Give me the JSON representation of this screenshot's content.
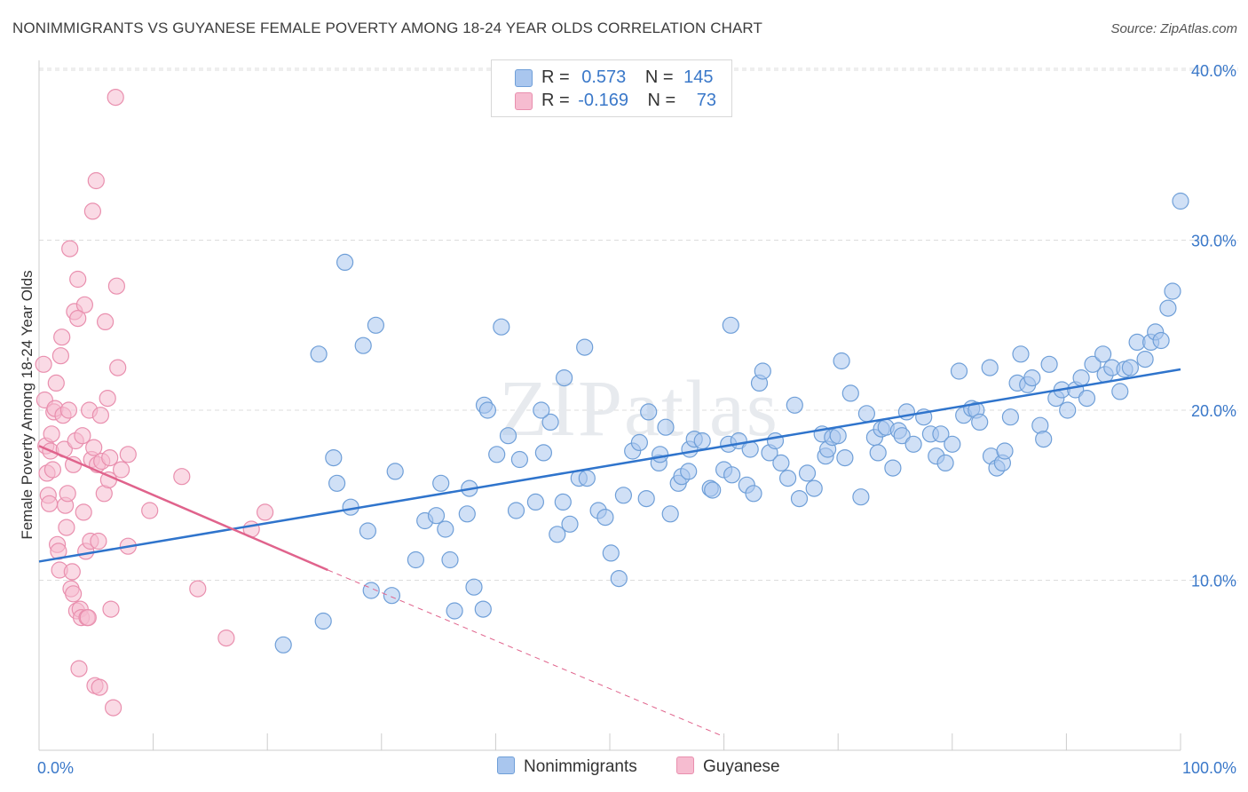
{
  "title": "NONIMMIGRANTS VS GUYANESE FEMALE POVERTY AMONG 18-24 YEAR OLDS CORRELATION CHART",
  "source": "Source: ZipAtlas.com",
  "watermark": "ZIPatlas",
  "legend": {
    "rows": [
      {
        "r_label": "R =",
        "r_value": "0.573",
        "n_label": "N =",
        "n_value": "145"
      },
      {
        "r_label": "R =",
        "r_value": "-0.169",
        "n_label": "N =",
        "n_value": "73"
      }
    ]
  },
  "bottom_legend": [
    "Nonimmigrants",
    "Guyanese"
  ],
  "colors": {
    "blue_fill": "#a9c6ee",
    "blue_stroke": "#6f9fd8",
    "blue_line": "#2f74cc",
    "pink_fill": "#f6bcd0",
    "pink_stroke": "#e98fae",
    "pink_line": "#e0638c",
    "grid": "#dddddd",
    "tick_text": "#3a78c9"
  },
  "chart_data": {
    "type": "scatter",
    "title": "NONIMMIGRANTS VS GUYANESE FEMALE POVERTY AMONG 18-24 YEAR OLDS CORRELATION CHART",
    "xlabel": "",
    "ylabel": "Female Poverty Among 18-24 Year Olds",
    "xlim": [
      0,
      100
    ],
    "ylim": [
      0,
      42
    ],
    "x_tick_labels": [
      "0.0%",
      "100.0%"
    ],
    "y_ticks": [
      10,
      20,
      30,
      40
    ],
    "y_tick_labels": [
      "10.0%",
      "20.0%",
      "30.0%",
      "40.0%"
    ],
    "grid": true,
    "legend_position": "top-center",
    "series": [
      {
        "name": "Nonimmigrants",
        "trendline": {
          "x": [
            0,
            100
          ],
          "y": [
            11.1,
            22.4
          ]
        },
        "points": [
          [
            21.4,
            6.2
          ],
          [
            24.9,
            7.6
          ],
          [
            26.8,
            28.7
          ],
          [
            24.5,
            23.3
          ],
          [
            25.8,
            17.2
          ],
          [
            26.1,
            15.7
          ],
          [
            27.3,
            14.3
          ],
          [
            28.4,
            23.8
          ],
          [
            29.5,
            25.0
          ],
          [
            28.8,
            12.9
          ],
          [
            31.2,
            16.4
          ],
          [
            29.1,
            9.4
          ],
          [
            30.9,
            9.1
          ],
          [
            33.0,
            11.2
          ],
          [
            33.8,
            13.5
          ],
          [
            34.8,
            13.8
          ],
          [
            35.2,
            15.7
          ],
          [
            35.6,
            13.0
          ],
          [
            36.0,
            11.2
          ],
          [
            37.5,
            13.9
          ],
          [
            37.7,
            15.4
          ],
          [
            38.1,
            9.6
          ],
          [
            36.4,
            8.2
          ],
          [
            38.9,
            8.3
          ],
          [
            39.0,
            20.3
          ],
          [
            39.3,
            20.0
          ],
          [
            40.1,
            17.4
          ],
          [
            40.5,
            24.9
          ],
          [
            41.1,
            18.5
          ],
          [
            42.1,
            17.1
          ],
          [
            41.8,
            14.1
          ],
          [
            43.5,
            14.6
          ],
          [
            44.2,
            17.5
          ],
          [
            44.8,
            19.3
          ],
          [
            44.0,
            20.0
          ],
          [
            45.4,
            12.7
          ],
          [
            45.9,
            14.6
          ],
          [
            46.0,
            21.9
          ],
          [
            46.5,
            13.3
          ],
          [
            47.3,
            16.0
          ],
          [
            47.8,
            23.7
          ],
          [
            48.0,
            16.0
          ],
          [
            49.0,
            14.1
          ],
          [
            49.6,
            13.7
          ],
          [
            50.1,
            11.6
          ],
          [
            50.8,
            10.1
          ],
          [
            51.2,
            15.0
          ],
          [
            52.0,
            17.6
          ],
          [
            52.6,
            18.1
          ],
          [
            53.2,
            14.8
          ],
          [
            53.4,
            19.9
          ],
          [
            54.3,
            16.9
          ],
          [
            54.4,
            17.4
          ],
          [
            54.9,
            19.0
          ],
          [
            55.3,
            13.9
          ],
          [
            56.0,
            15.7
          ],
          [
            56.3,
            16.1
          ],
          [
            56.9,
            16.4
          ],
          [
            57.0,
            17.7
          ],
          [
            57.4,
            18.3
          ],
          [
            58.1,
            18.2
          ],
          [
            58.8,
            15.4
          ],
          [
            59.0,
            15.3
          ],
          [
            60.0,
            16.5
          ],
          [
            60.4,
            18.0
          ],
          [
            60.7,
            16.2
          ],
          [
            60.6,
            25.0
          ],
          [
            61.3,
            18.2
          ],
          [
            62.0,
            15.6
          ],
          [
            62.3,
            17.7
          ],
          [
            62.6,
            15.1
          ],
          [
            63.1,
            21.6
          ],
          [
            63.4,
            22.3
          ],
          [
            64.0,
            17.5
          ],
          [
            64.5,
            18.2
          ],
          [
            65.0,
            16.9
          ],
          [
            65.6,
            16.0
          ],
          [
            66.2,
            20.3
          ],
          [
            66.6,
            14.8
          ],
          [
            67.3,
            16.3
          ],
          [
            67.9,
            15.4
          ],
          [
            68.6,
            18.6
          ],
          [
            68.9,
            17.3
          ],
          [
            69.1,
            17.7
          ],
          [
            69.5,
            18.4
          ],
          [
            70.0,
            18.5
          ],
          [
            70.3,
            22.9
          ],
          [
            70.6,
            17.2
          ],
          [
            71.1,
            21.0
          ],
          [
            72.0,
            14.9
          ],
          [
            72.5,
            19.8
          ],
          [
            73.2,
            18.4
          ],
          [
            73.5,
            17.5
          ],
          [
            73.8,
            18.9
          ],
          [
            74.2,
            19.0
          ],
          [
            74.8,
            16.6
          ],
          [
            75.3,
            18.8
          ],
          [
            75.6,
            18.5
          ],
          [
            76.0,
            19.9
          ],
          [
            76.6,
            18.0
          ],
          [
            77.5,
            19.6
          ],
          [
            78.1,
            18.6
          ],
          [
            78.6,
            17.3
          ],
          [
            79.0,
            18.6
          ],
          [
            79.4,
            16.9
          ],
          [
            80.0,
            18.0
          ],
          [
            80.6,
            22.3
          ],
          [
            81.0,
            19.7
          ],
          [
            81.7,
            20.1
          ],
          [
            82.1,
            20.0
          ],
          [
            82.4,
            19.3
          ],
          [
            83.3,
            22.5
          ],
          [
            83.4,
            17.3
          ],
          [
            83.9,
            16.6
          ],
          [
            84.4,
            16.9
          ],
          [
            84.6,
            17.6
          ],
          [
            85.1,
            19.6
          ],
          [
            85.7,
            21.6
          ],
          [
            86.0,
            23.3
          ],
          [
            86.6,
            21.5
          ],
          [
            87.0,
            21.9
          ],
          [
            87.7,
            19.1
          ],
          [
            88.0,
            18.3
          ],
          [
            88.5,
            22.7
          ],
          [
            89.1,
            20.7
          ],
          [
            89.6,
            21.2
          ],
          [
            90.1,
            20.0
          ],
          [
            90.8,
            21.2
          ],
          [
            91.3,
            21.9
          ],
          [
            91.8,
            20.7
          ],
          [
            92.3,
            22.7
          ],
          [
            93.2,
            23.3
          ],
          [
            93.4,
            22.1
          ],
          [
            94.0,
            22.5
          ],
          [
            94.7,
            21.1
          ],
          [
            95.1,
            22.4
          ],
          [
            95.6,
            22.5
          ],
          [
            96.2,
            24.0
          ],
          [
            96.9,
            23.0
          ],
          [
            97.4,
            24.0
          ],
          [
            97.8,
            24.6
          ],
          [
            98.3,
            24.1
          ],
          [
            98.9,
            26.0
          ],
          [
            99.3,
            27.0
          ],
          [
            100.0,
            32.3
          ]
        ]
      },
      {
        "name": "Guyanese",
        "trendline": {
          "x": [
            0,
            25.3
          ],
          "y": [
            17.9,
            10.6
          ],
          "dashed_to": [
            60.0,
            0.8
          ]
        },
        "points": [
          [
            0.4,
            22.7
          ],
          [
            0.5,
            20.6
          ],
          [
            0.6,
            17.9
          ],
          [
            0.7,
            16.3
          ],
          [
            0.8,
            15.0
          ],
          [
            0.9,
            14.5
          ],
          [
            1.0,
            17.6
          ],
          [
            1.1,
            18.6
          ],
          [
            1.2,
            16.5
          ],
          [
            1.3,
            19.9
          ],
          [
            1.4,
            20.1
          ],
          [
            1.5,
            21.6
          ],
          [
            1.6,
            12.1
          ],
          [
            1.7,
            11.7
          ],
          [
            1.8,
            10.6
          ],
          [
            1.9,
            23.2
          ],
          [
            2.0,
            24.3
          ],
          [
            2.1,
            19.7
          ],
          [
            2.2,
            17.7
          ],
          [
            2.3,
            14.4
          ],
          [
            2.4,
            13.1
          ],
          [
            2.5,
            15.1
          ],
          [
            2.6,
            20.0
          ],
          [
            2.7,
            29.5
          ],
          [
            2.8,
            9.5
          ],
          [
            2.9,
            10.5
          ],
          [
            3.0,
            9.2
          ],
          [
            3.1,
            25.8
          ],
          [
            3.2,
            18.2
          ],
          [
            3.3,
            8.2
          ],
          [
            3.4,
            27.7
          ],
          [
            3.5,
            4.8
          ],
          [
            3.6,
            8.3
          ],
          [
            3.7,
            7.8
          ],
          [
            3.8,
            18.5
          ],
          [
            3.9,
            14.0
          ],
          [
            4.0,
            26.2
          ],
          [
            4.1,
            11.7
          ],
          [
            4.2,
            7.8
          ],
          [
            4.3,
            7.8
          ],
          [
            4.4,
            20.0
          ],
          [
            4.5,
            12.3
          ],
          [
            4.6,
            17.1
          ],
          [
            4.7,
            31.7
          ],
          [
            4.8,
            17.8
          ],
          [
            4.9,
            3.8
          ],
          [
            5.0,
            33.5
          ],
          [
            5.1,
            16.8
          ],
          [
            5.2,
            12.3
          ],
          [
            5.3,
            3.7
          ],
          [
            5.4,
            19.7
          ],
          [
            5.5,
            17.0
          ],
          [
            5.7,
            15.1
          ],
          [
            5.8,
            25.2
          ],
          [
            6.0,
            20.7
          ],
          [
            6.1,
            15.9
          ],
          [
            6.2,
            17.2
          ],
          [
            6.3,
            8.3
          ],
          [
            6.5,
            2.5
          ],
          [
            6.7,
            38.4
          ],
          [
            6.8,
            27.3
          ],
          [
            6.9,
            22.5
          ],
          [
            7.2,
            16.5
          ],
          [
            7.8,
            12.0
          ],
          [
            7.8,
            17.4
          ],
          [
            3.4,
            25.4
          ],
          [
            9.7,
            14.1
          ],
          [
            12.5,
            16.1
          ],
          [
            13.9,
            9.5
          ],
          [
            16.4,
            6.6
          ],
          [
            18.6,
            13.0
          ],
          [
            19.8,
            14.0
          ],
          [
            3.0,
            16.8
          ]
        ]
      }
    ]
  }
}
